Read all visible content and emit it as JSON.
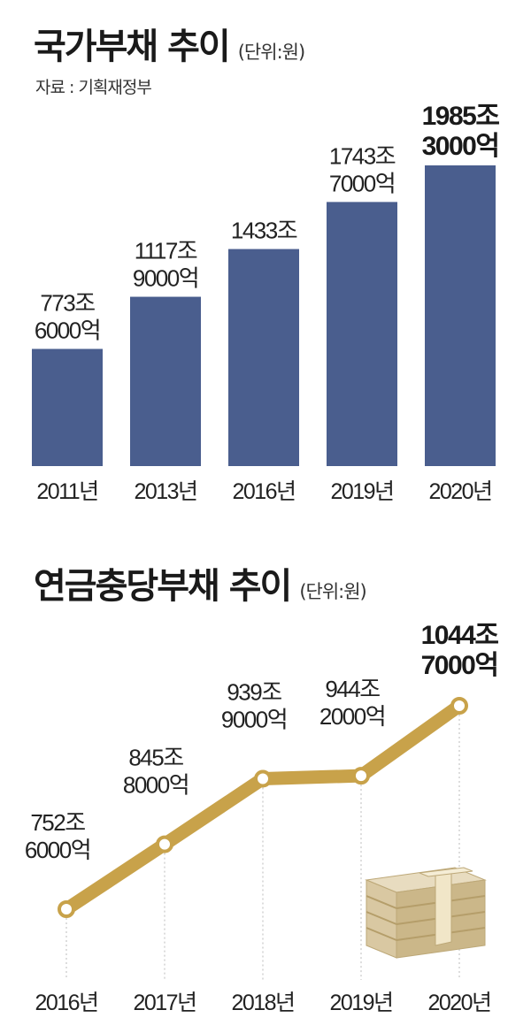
{
  "charts": {
    "debt": {
      "title": "국가부채 추이",
      "unit": "(단위:원)",
      "source": "자료 : 기획재정부"
    },
    "pension": {
      "title": "연금충당부채 추이",
      "unit": "(단위:원)"
    }
  },
  "colors": {
    "bar": "#4a5e8e",
    "line": "#c8a24a",
    "point_fill": "#ffffff"
  },
  "illustration": "money-stack-icon",
  "chart_data": [
    {
      "type": "bar",
      "title": "국가부채 추이",
      "categories": [
        "2011년",
        "2013년",
        "2016년",
        "2019년",
        "2020년"
      ],
      "values": [
        773.6,
        1117.9,
        1433,
        1743.7,
        1985.3
      ],
      "value_labels": [
        [
          "773조",
          "6000억"
        ],
        [
          "1117조",
          "9000억"
        ],
        [
          "1433조"
        ],
        [
          "1743조",
          "7000억"
        ],
        [
          "1985조",
          "3000억"
        ]
      ],
      "ylim": [
        0,
        2000
      ],
      "grid": false,
      "legend": "none"
    },
    {
      "type": "line",
      "title": "연금충당부채 추이",
      "categories": [
        "2016년",
        "2017년",
        "2018년",
        "2019년",
        "2020년"
      ],
      "values": [
        752.6,
        845.8,
        939.9,
        944.2,
        1044.7
      ],
      "value_labels": [
        [
          "752조",
          "6000억"
        ],
        [
          "845조",
          "8000억"
        ],
        [
          "939조",
          "9000억"
        ],
        [
          "944조",
          "2000억"
        ],
        [
          "1044조",
          "7000억"
        ]
      ],
      "ylim": [
        700,
        1060
      ],
      "grid": false,
      "legend": "none"
    }
  ]
}
